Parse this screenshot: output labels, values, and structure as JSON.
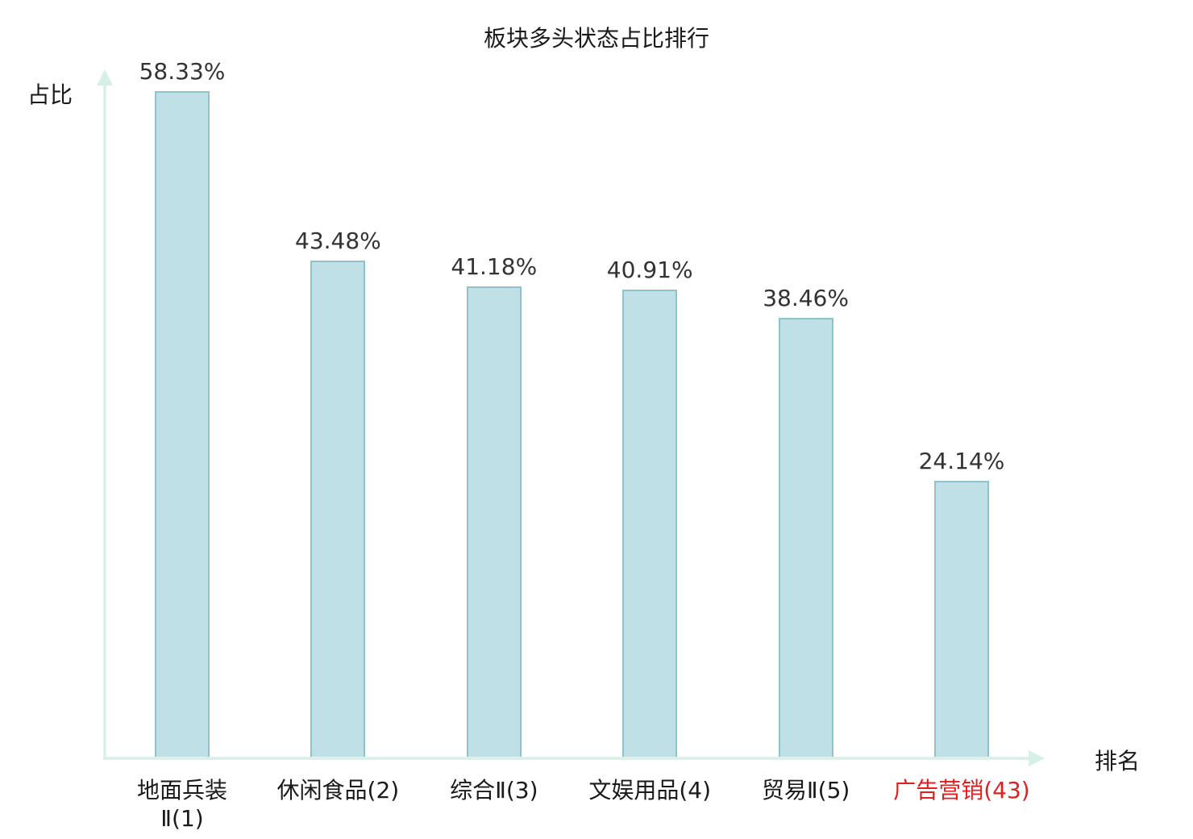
{
  "chart_data": {
    "type": "bar",
    "title": "板块多头状态占比排行",
    "xlabel": "排名",
    "ylabel": "占比",
    "categories": [
      "地面兵装\nⅡ(1)",
      "休闲食品(2)",
      "综合Ⅱ(3)",
      "文娱用品(4)",
      "贸易Ⅱ(5)",
      "广告营销(43)"
    ],
    "values": [
      58.33,
      43.48,
      41.18,
      40.91,
      38.46,
      24.14
    ],
    "value_labels": [
      "58.33%",
      "43.48%",
      "41.18%",
      "40.91%",
      "38.46%",
      "24.14%"
    ],
    "highlight_index": 5,
    "ylim": [
      0,
      60
    ],
    "grid": false,
    "legend_position": "none",
    "colors": {
      "bar_fill": "#bfe0e6",
      "bar_border": "#8fc3cc",
      "axis": "#d6efe7",
      "value_label": "#333333",
      "tick_label": "#1a1a1a",
      "highlight_tick_label": "#e02020"
    }
  }
}
